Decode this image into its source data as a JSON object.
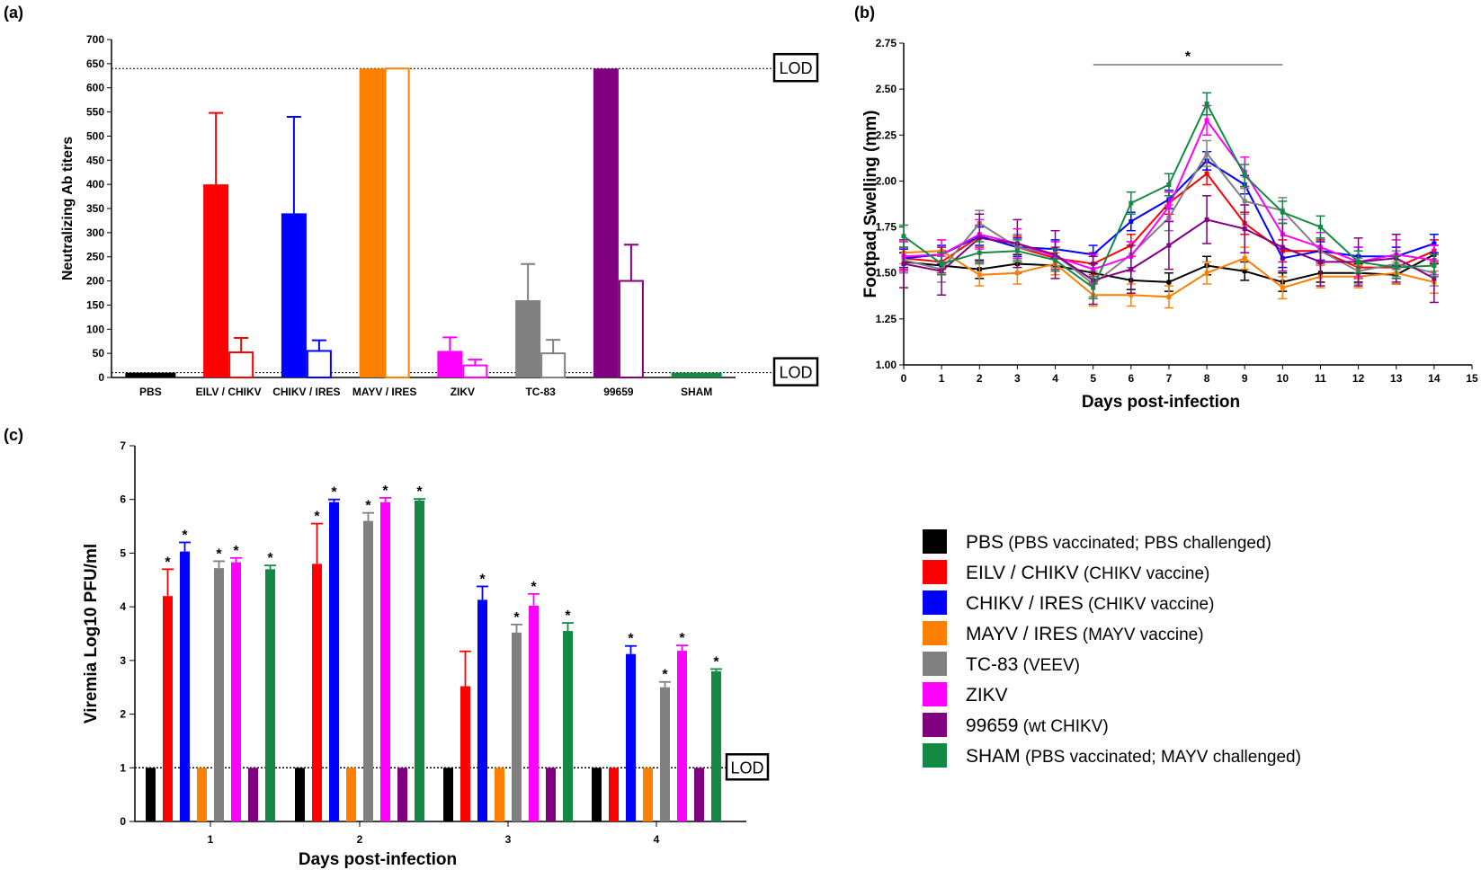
{
  "figure": {
    "panel_a": "(a)",
    "panel_b": "(b)",
    "panel_c": "(c)",
    "lod_label": "LOD"
  },
  "legend": [
    {
      "name": "PBS",
      "note": "(PBS vaccinated; PBS challenged)",
      "color": "#000000"
    },
    {
      "name": "EILV / CHIKV",
      "note": "(CHIKV vaccine)",
      "color": "#ff0000"
    },
    {
      "name": "CHIKV / IRES",
      "note": "(CHIKV vaccine)",
      "color": "#0000ff"
    },
    {
      "name": "MAYV / IRES",
      "note": "(MAYV vaccine)",
      "color": "#ff8000"
    },
    {
      "name": "TC-83",
      "note": "(VEEV)",
      "color": "#808080"
    },
    {
      "name": "ZIKV",
      "note": "",
      "color": "#ff00ff"
    },
    {
      "name": "99659",
      "note": "(wt CHIKV)",
      "color": "#800080"
    },
    {
      "name": "SHAM",
      "note": "(PBS vaccinated; MAYV challenged)",
      "color": "#138a43"
    }
  ],
  "chart_data": [
    {
      "panel": "(a)",
      "type": "bar",
      "ylabel": "Neutralizing Ab titers",
      "xlabel": "",
      "ylim": [
        0,
        700
      ],
      "yticks": [
        "0",
        "50",
        "100",
        "150",
        "200",
        "250",
        "300",
        "350",
        "400",
        "450",
        "500",
        "550",
        "600",
        "650",
        "700"
      ],
      "lod_values": [
        640,
        10
      ],
      "categories": [
        "PBS",
        "EILV / CHIKV",
        "CHIKV / IRES",
        "MAYV / IRES",
        "ZIKV",
        "TC-83",
        "99659",
        "SHAM"
      ],
      "colors": [
        "#000000",
        "#ff0000",
        "#0000ff",
        "#ff8000",
        "#ff00ff",
        "#808080",
        "#800080",
        "#138a43"
      ],
      "series": [
        {
          "name": "filled",
          "values": [
            10,
            400,
            340,
            640,
            55,
            160,
            640,
            10
          ],
          "errors": [
            0,
            148,
            200,
            0,
            28,
            75,
            0,
            0
          ]
        },
        {
          "name": "open",
          "values": [
            null,
            52,
            55,
            640,
            25,
            50,
            200,
            null
          ],
          "errors": [
            0,
            30,
            22,
            0,
            12,
            28,
            75,
            0
          ]
        }
      ]
    },
    {
      "panel": "(b)",
      "type": "line",
      "xlabel": "Days post-infection",
      "ylabel": "Footpad Swelling (mm)",
      "xlim": [
        0,
        15
      ],
      "ylim": [
        1.0,
        2.75
      ],
      "xticks": [
        "0",
        "1",
        "2",
        "3",
        "4",
        "5",
        "6",
        "7",
        "8",
        "9",
        "10",
        "11",
        "12",
        "13",
        "14",
        "15"
      ],
      "yticks": [
        "1.00",
        "1.25",
        "1.50",
        "1.75",
        "2.00",
        "2.25",
        "2.50",
        "2.75"
      ],
      "significance": {
        "label": "*",
        "from": 5,
        "to": 10
      },
      "x": [
        0,
        1,
        2,
        3,
        4,
        5,
        6,
        7,
        8,
        9,
        10,
        11,
        12,
        13,
        14
      ],
      "series": [
        {
          "name": "PBS",
          "color": "#000000",
          "values": [
            1.56,
            1.54,
            1.52,
            1.55,
            1.54,
            1.5,
            1.46,
            1.45,
            1.54,
            1.51,
            1.45,
            1.5,
            1.5,
            1.49,
            1.6
          ],
          "err": 0.05
        },
        {
          "name": "EILV / CHIKV",
          "color": "#ff0000",
          "values": [
            1.58,
            1.56,
            1.7,
            1.64,
            1.58,
            1.55,
            1.65,
            1.88,
            2.04,
            1.77,
            1.62,
            1.62,
            1.53,
            1.53,
            1.62
          ],
          "err": 0.06
        },
        {
          "name": "CHIKV / IRES",
          "color": "#0000ff",
          "values": [
            1.58,
            1.6,
            1.7,
            1.64,
            1.63,
            1.6,
            1.78,
            1.9,
            2.11,
            1.98,
            1.58,
            1.62,
            1.59,
            1.59,
            1.66
          ],
          "err": 0.05
        },
        {
          "name": "MAYV / IRES",
          "color": "#ff8000",
          "values": [
            1.61,
            1.62,
            1.49,
            1.5,
            1.55,
            1.38,
            1.38,
            1.37,
            1.5,
            1.58,
            1.42,
            1.48,
            1.48,
            1.5,
            1.45
          ],
          "err": 0.06
        },
        {
          "name": "TC-83",
          "color": "#808080",
          "values": [
            1.57,
            1.52,
            1.77,
            1.64,
            1.6,
            1.44,
            1.6,
            1.8,
            2.15,
            1.89,
            1.84,
            1.62,
            1.51,
            1.55,
            1.5
          ],
          "err": 0.07
        },
        {
          "name": "ZIKV",
          "color": "#ff00ff",
          "values": [
            1.59,
            1.6,
            1.71,
            1.66,
            1.59,
            1.52,
            1.59,
            1.86,
            2.33,
            2.05,
            1.71,
            1.64,
            1.56,
            1.6,
            1.57
          ],
          "err": 0.08
        },
        {
          "name": "99659",
          "color": "#800080",
          "values": [
            1.55,
            1.51,
            1.69,
            1.66,
            1.6,
            1.46,
            1.52,
            1.65,
            1.79,
            1.74,
            1.64,
            1.56,
            1.56,
            1.58,
            1.47
          ],
          "err": 0.13
        },
        {
          "name": "SHAM",
          "color": "#138a43",
          "values": [
            1.7,
            1.55,
            1.61,
            1.62,
            1.57,
            1.42,
            1.88,
            1.98,
            2.42,
            2.03,
            1.83,
            1.75,
            1.56,
            1.53,
            1.54
          ],
          "err": 0.06
        }
      ]
    },
    {
      "panel": "(c)",
      "type": "bar",
      "xlabel": "Days post-infection",
      "ylabel": "Viremia Log10 PFU/ml",
      "ylim": [
        0,
        7
      ],
      "yticks": [
        "0",
        "1",
        "2",
        "3",
        "4",
        "5",
        "6",
        "7"
      ],
      "lod_value": 1,
      "significance_label": "*",
      "categories": [
        "1",
        "2",
        "3",
        "4"
      ],
      "series": [
        {
          "name": "PBS",
          "color": "#000000",
          "values": [
            1,
            1,
            1,
            1
          ],
          "errors": [
            0,
            0,
            0,
            0
          ],
          "sig": [
            false,
            false,
            false,
            false
          ]
        },
        {
          "name": "EILV / CHIKV",
          "color": "#ff0000",
          "values": [
            4.2,
            4.8,
            2.52,
            1
          ],
          "errors": [
            0.5,
            0.75,
            0.65,
            0
          ],
          "sig": [
            true,
            true,
            false,
            false
          ]
        },
        {
          "name": "CHIKV / IRES",
          "color": "#0000ff",
          "values": [
            5.03,
            5.95,
            4.13,
            3.12
          ],
          "errors": [
            0.17,
            0.05,
            0.25,
            0.15
          ],
          "sig": [
            true,
            true,
            true,
            true
          ]
        },
        {
          "name": "MAYV / IRES",
          "color": "#ff8000",
          "values": [
            1,
            1,
            1,
            1
          ],
          "errors": [
            0,
            0,
            0,
            0
          ],
          "sig": [
            false,
            false,
            false,
            false
          ]
        },
        {
          "name": "TC-83",
          "color": "#808080",
          "values": [
            4.72,
            5.6,
            3.52,
            2.5
          ],
          "errors": [
            0.13,
            0.15,
            0.15,
            0.1
          ],
          "sig": [
            true,
            true,
            true,
            true
          ]
        },
        {
          "name": "ZIKV",
          "color": "#ff00ff",
          "values": [
            4.83,
            5.95,
            4.02,
            3.18
          ],
          "errors": [
            0.08,
            0.08,
            0.22,
            0.1
          ],
          "sig": [
            true,
            true,
            true,
            true
          ]
        },
        {
          "name": "99659",
          "color": "#800080",
          "values": [
            1,
            1,
            1,
            1
          ],
          "errors": [
            0,
            0,
            0,
            0
          ],
          "sig": [
            false,
            false,
            false,
            false
          ]
        },
        {
          "name": "SHAM",
          "color": "#138a43",
          "values": [
            4.7,
            5.98,
            3.55,
            2.8
          ],
          "errors": [
            0.07,
            0.03,
            0.15,
            0.04
          ],
          "sig": [
            true,
            true,
            true,
            true
          ]
        }
      ]
    }
  ]
}
